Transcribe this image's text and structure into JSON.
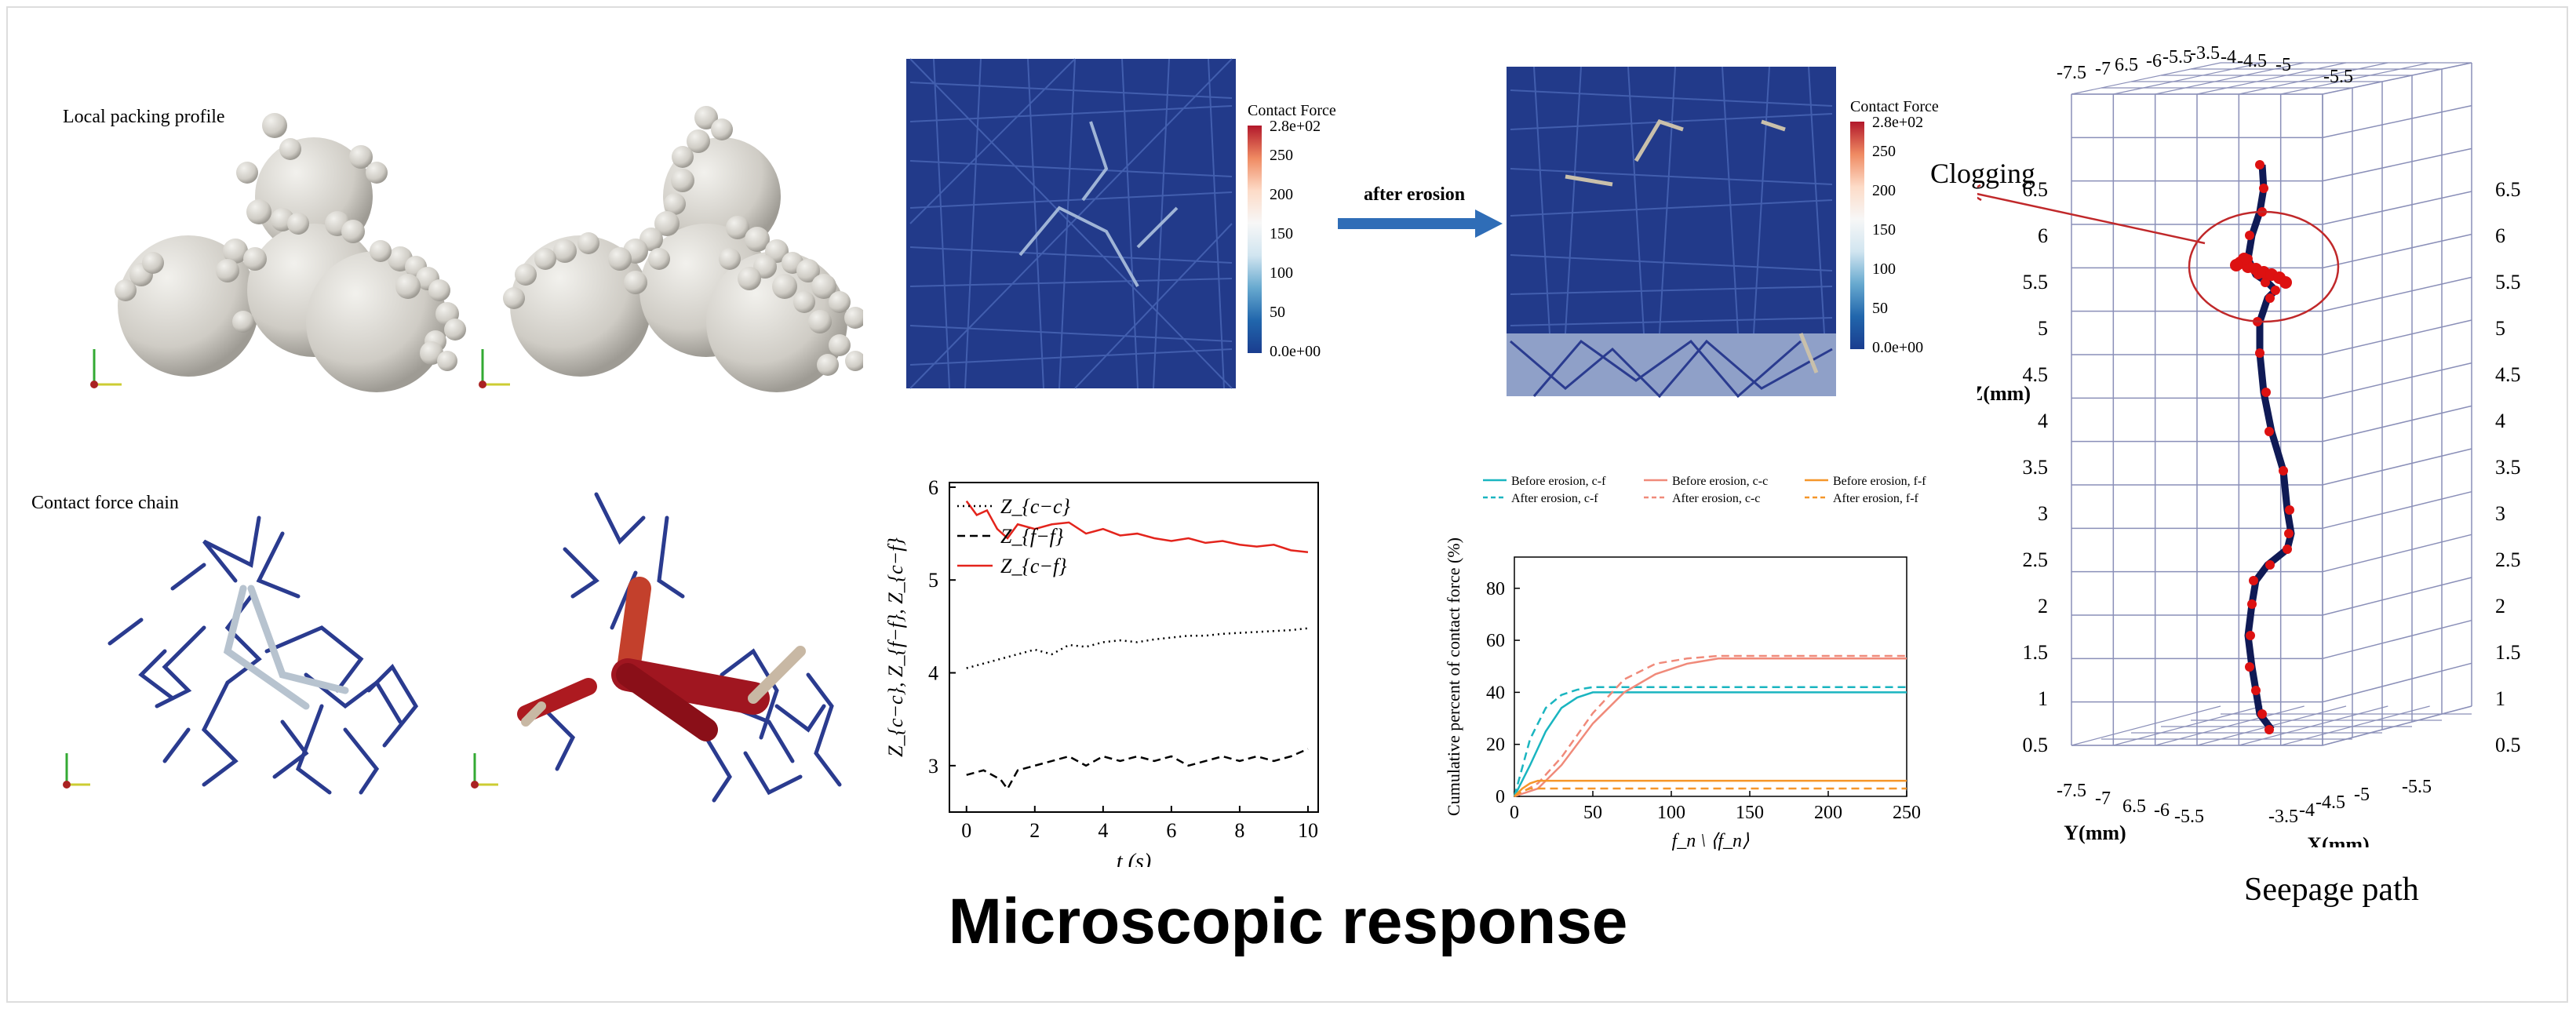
{
  "labels": {
    "local_packing": "Local packing profile",
    "contact_chain": "Contact force chain",
    "after_erosion": "after erosion",
    "clogging": "Clogging",
    "seepage_path": "Seepage path",
    "main_title": "Microscopic response"
  },
  "colorbar": {
    "title": "Contact Force",
    "ticks": [
      "2.8e+02",
      "250",
      "200",
      "150",
      "100",
      "50",
      "0.0e+00"
    ]
  },
  "colors": {
    "sphere": "#d8d6d0",
    "chain_blue": "#2a3b8f",
    "chain_red": "#b01c1c",
    "arrow_blue": "#2f6db7",
    "series_red": "#e3241c",
    "teal": "#1ab5c0",
    "salmon": "#f08a7a",
    "orange": "#f5962a"
  },
  "chart_data": [
    {
      "type": "line",
      "xlabel": "t (s)",
      "ylabel": "Z_{c−c}, Z_{f−f}, Z_{c−f}",
      "xticks": [
        "0",
        "2",
        "4",
        "6",
        "8",
        "10"
      ],
      "yticks": [
        "3",
        "4",
        "5",
        "6"
      ],
      "xlim": [
        -0.5,
        10.3
      ],
      "ylim": [
        2.5,
        6.05
      ],
      "legend": [
        "Z_{c−c}",
        "Z_{f−f}",
        "Z_{c−f}"
      ],
      "series": [
        {
          "name": "Z_{c−c}",
          "style": "dotted",
          "x": [
            0,
            0.5,
            1,
            1.5,
            2,
            2.5,
            3,
            3.5,
            4,
            4.5,
            5,
            5.5,
            6,
            6.5,
            7,
            7.5,
            8,
            8.5,
            9,
            9.5,
            10
          ],
          "values": [
            4.05,
            4.1,
            4.15,
            4.2,
            4.25,
            4.2,
            4.3,
            4.28,
            4.33,
            4.35,
            4.33,
            4.36,
            4.38,
            4.4,
            4.4,
            4.42,
            4.43,
            4.44,
            4.45,
            4.46,
            4.48
          ]
        },
        {
          "name": "Z_{f−f}",
          "style": "dashed",
          "x": [
            0,
            0.5,
            1,
            1.2,
            1.5,
            2,
            2.5,
            3,
            3.5,
            4,
            4.5,
            5,
            5.5,
            6,
            6.5,
            7,
            7.5,
            8,
            8.5,
            9,
            9.5,
            10
          ],
          "values": [
            2.9,
            2.95,
            2.85,
            2.75,
            2.95,
            3.0,
            3.05,
            3.1,
            3.0,
            3.1,
            3.05,
            3.1,
            3.05,
            3.1,
            3.0,
            3.05,
            3.1,
            3.05,
            3.1,
            3.05,
            3.1,
            3.18
          ]
        },
        {
          "name": "Z_{c−f}",
          "style": "solid",
          "x": [
            0,
            0.3,
            0.6,
            0.9,
            1.2,
            1.5,
            2,
            2.5,
            3,
            3.5,
            4,
            4.5,
            5,
            5.5,
            6,
            6.5,
            7,
            7.5,
            8,
            8.5,
            9,
            9.5,
            10
          ],
          "values": [
            5.85,
            5.7,
            5.75,
            5.55,
            5.45,
            5.6,
            5.55,
            5.6,
            5.62,
            5.5,
            5.55,
            5.48,
            5.5,
            5.45,
            5.42,
            5.45,
            5.4,
            5.42,
            5.38,
            5.36,
            5.38,
            5.32,
            5.3
          ]
        }
      ]
    },
    {
      "type": "line",
      "xlabel": "f_n \\ ⟨f_n⟩",
      "ylabel": "Cumulative percent of contact force (%)",
      "xticks": [
        "0",
        "50",
        "100",
        "150",
        "200",
        "250"
      ],
      "yticks": [
        "0",
        "20",
        "40",
        "60",
        "80"
      ],
      "xlim": [
        0,
        250
      ],
      "ylim": [
        0,
        92
      ],
      "legend_placement": "top",
      "series": [
        {
          "name": "Before erosion, c-f",
          "style": "solid",
          "color": "#1ab5c0",
          "x": [
            0,
            10,
            20,
            30,
            40,
            50,
            60,
            250
          ],
          "values": [
            0,
            12,
            25,
            34,
            38,
            40,
            40,
            40
          ]
        },
        {
          "name": "After erosion, c-f",
          "style": "dashed",
          "color": "#1ab5c0",
          "x": [
            0,
            10,
            20,
            30,
            40,
            50,
            60,
            250
          ],
          "values": [
            0,
            22,
            34,
            39,
            41,
            42,
            42,
            42
          ]
        },
        {
          "name": "Before erosion, c-c",
          "style": "solid",
          "color": "#f08a7a",
          "x": [
            0,
            15,
            30,
            50,
            70,
            90,
            110,
            130,
            150,
            250
          ],
          "values": [
            0,
            3,
            12,
            28,
            40,
            47,
            51,
            53,
            53,
            53
          ]
        },
        {
          "name": "After erosion, c-c",
          "style": "dashed",
          "color": "#f08a7a",
          "x": [
            0,
            15,
            30,
            50,
            70,
            90,
            110,
            130,
            150,
            250
          ],
          "values": [
            0,
            5,
            15,
            32,
            45,
            51,
            53,
            54,
            54,
            54
          ]
        },
        {
          "name": "Before erosion, f-f",
          "style": "solid",
          "color": "#f5962a",
          "x": [
            0,
            5,
            10,
            15,
            250
          ],
          "values": [
            0,
            3,
            5,
            6,
            6
          ]
        },
        {
          "name": "After erosion, f-f",
          "style": "dashed",
          "color": "#f5962a",
          "x": [
            0,
            5,
            10,
            15,
            250
          ],
          "values": [
            0,
            2,
            3,
            3,
            3
          ]
        }
      ]
    }
  ],
  "grid3d": {
    "z_label": "Z(mm)",
    "y_label": "Y(mm)",
    "x_label": "X(mm)",
    "z_ticks": [
      "6.5",
      "6",
      "5.5",
      "5",
      "4.5",
      "4",
      "3.5",
      "3",
      "2.5",
      "2",
      "1.5",
      "1",
      "0.5"
    ],
    "top_ticks": [
      "-7.5",
      "-7",
      "6.5",
      "-6",
      "-5.5",
      "-3.5",
      "-4",
      "-4.5",
      "-5",
      "-5.5"
    ],
    "bottom_ticks": [
      "-7.5",
      "-7",
      "6.5",
      "-6",
      "-5.5",
      "-3.5",
      "-4",
      "-4.5",
      "-5",
      "-5.5"
    ]
  }
}
